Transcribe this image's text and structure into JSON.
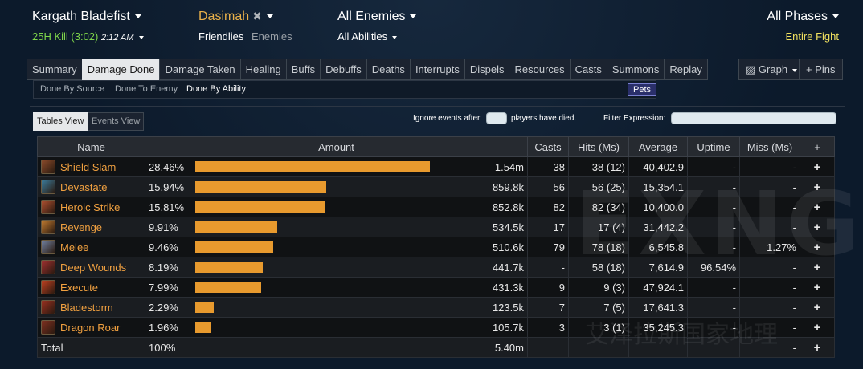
{
  "header": {
    "encounter": "Kargath Bladefist",
    "kill_info": "25H Kill (3:02)",
    "kill_time": "2:12 AM",
    "player": "Dasimah",
    "friendlies": "Friendlies",
    "enemies": "Enemies",
    "target": "All Enemies",
    "abilities": "All Abilities",
    "phases": "All Phases",
    "fight": "Entire Fight"
  },
  "tabs": [
    "Summary",
    "Damage Done",
    "Damage Taken",
    "Healing",
    "Buffs",
    "Debuffs",
    "Deaths",
    "Interrupts",
    "Dispels",
    "Resources",
    "Casts",
    "Summons",
    "Replay"
  ],
  "right_tabs": {
    "graph": "Graph",
    "pins": "+ Pins"
  },
  "subnav": {
    "by_source": "Done By Source",
    "to_enemy": "Done To Enemy",
    "by_ability": "Done By Ability",
    "pets": "Pets"
  },
  "views": {
    "tables": "Tables View",
    "events": "Events View"
  },
  "filters": {
    "ignore_pre": "Ignore events after",
    "ignore_post": "players have died.",
    "filter_label": "Filter Expression:"
  },
  "table": {
    "headers": [
      "Name",
      "Amount",
      "Casts",
      "Hits (Ms)",
      "Average",
      "Uptime",
      "Miss (Ms)",
      "+"
    ],
    "rows": [
      {
        "name": "Shield Slam",
        "icon": "shield-slam-icon",
        "pct": "28.46%",
        "fill": 0.2846,
        "amount": "1.54m",
        "casts": "38",
        "hits": "38 (12)",
        "avg": "40,402.9",
        "uptime": "-",
        "miss": "-",
        "color": "#8a4a2a"
      },
      {
        "name": "Devastate",
        "icon": "devastate-icon",
        "pct": "15.94%",
        "fill": 0.1594,
        "amount": "859.8k",
        "casts": "56",
        "hits": "56 (25)",
        "avg": "15,354.1",
        "uptime": "-",
        "miss": "-",
        "color": "#3a7a9a"
      },
      {
        "name": "Heroic Strike",
        "icon": "heroic-strike-icon",
        "pct": "15.81%",
        "fill": 0.1581,
        "amount": "852.8k",
        "casts": "82",
        "hits": "82 (34)",
        "avg": "10,400.0",
        "uptime": "-",
        "miss": "-",
        "color": "#b05030"
      },
      {
        "name": "Revenge",
        "icon": "revenge-icon",
        "pct": "9.91%",
        "fill": 0.0991,
        "amount": "534.5k",
        "casts": "17",
        "hits": "17 (4)",
        "avg": "31,442.2",
        "uptime": "-",
        "miss": "-",
        "color": "#c07a30"
      },
      {
        "name": "Melee",
        "icon": "melee-icon",
        "pct": "9.46%",
        "fill": 0.0946,
        "amount": "510.6k",
        "casts": "79",
        "hits": "78 (18)",
        "avg": "6,545.8",
        "uptime": "-",
        "miss": "1.27%",
        "color": "#7080a0"
      },
      {
        "name": "Deep Wounds",
        "icon": "deep-wounds-icon",
        "pct": "8.19%",
        "fill": 0.0819,
        "amount": "441.7k",
        "casts": "-",
        "hits": "58 (18)",
        "avg": "7,614.9",
        "uptime": "96.54%",
        "miss": "-",
        "color": "#a03030"
      },
      {
        "name": "Execute",
        "icon": "execute-icon",
        "pct": "7.99%",
        "fill": 0.0799,
        "amount": "431.3k",
        "casts": "9",
        "hits": "9 (3)",
        "avg": "47,924.1",
        "uptime": "-",
        "miss": "-",
        "color": "#c04020"
      },
      {
        "name": "Bladestorm",
        "icon": "bladestorm-icon",
        "pct": "2.29%",
        "fill": 0.0229,
        "amount": "123.5k",
        "casts": "7",
        "hits": "7 (5)",
        "avg": "17,641.3",
        "uptime": "-",
        "miss": "-",
        "color": "#9a3020"
      },
      {
        "name": "Dragon Roar",
        "icon": "dragon-roar-icon",
        "pct": "1.96%",
        "fill": 0.0196,
        "amount": "105.7k",
        "casts": "3",
        "hits": "3 (1)",
        "avg": "35,245.3",
        "uptime": "-",
        "miss": "-",
        "color": "#803020"
      }
    ],
    "total": {
      "name": "Total",
      "pct": "100%",
      "amount": "5.40m",
      "miss": "-"
    }
  },
  "watermark": {
    "logo": "EXNGA",
    "text": "艾泽拉斯国家地理"
  },
  "colors": {
    "bar": "#e89a2e",
    "ability_name": "#f0a040",
    "kill": "#7fd64a",
    "fight": "#f0e060"
  }
}
